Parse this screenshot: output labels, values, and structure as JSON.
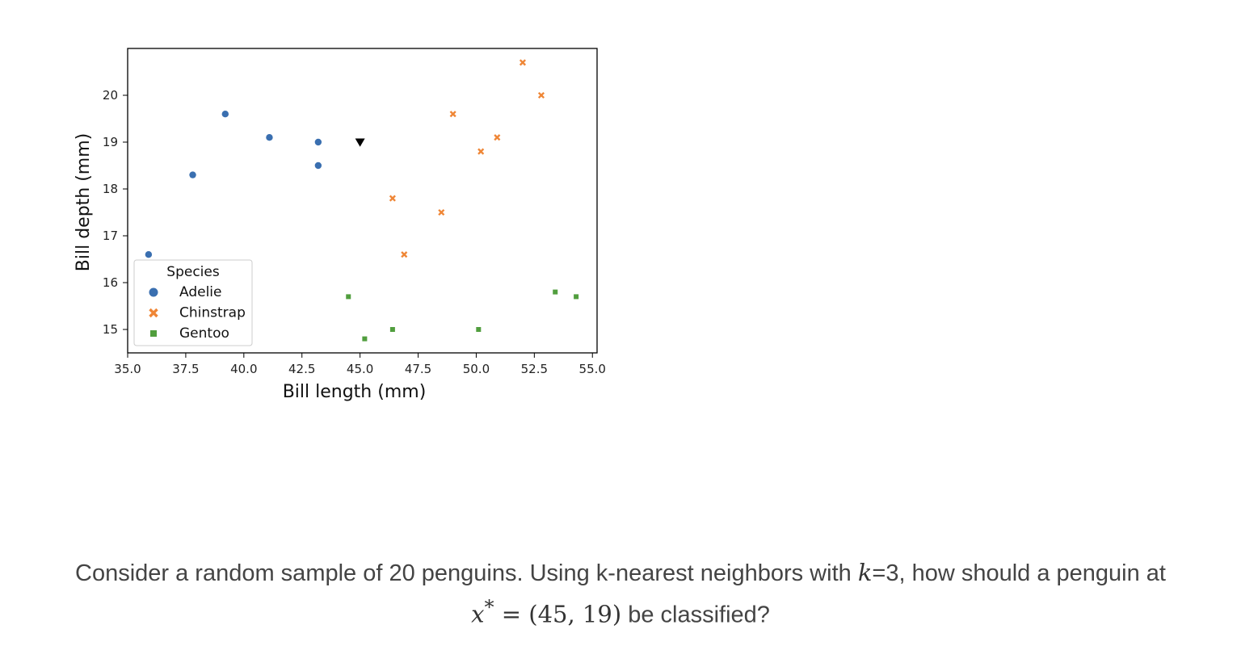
{
  "chart_data": {
    "type": "scatter",
    "xlabel": "Bill length (mm)",
    "ylabel": "Bill depth (mm)",
    "xlim": [
      35.0,
      55.2
    ],
    "ylim": [
      14.5,
      21.0
    ],
    "xticks": [
      "35.0",
      "37.5",
      "40.0",
      "42.5",
      "45.0",
      "47.5",
      "50.0",
      "52.5",
      "55.0"
    ],
    "yticks": [
      "15",
      "16",
      "17",
      "18",
      "19",
      "20"
    ],
    "grid": false,
    "legend": {
      "title": "Species",
      "position": "lower-left"
    },
    "series": [
      {
        "name": "Adelie",
        "marker": "circle",
        "color": "#3a6fb0",
        "x": [
          35.9,
          37.8,
          39.2,
          41.1,
          43.2,
          43.2
        ],
        "y": [
          16.6,
          18.3,
          19.6,
          19.1,
          19.0,
          18.5
        ]
      },
      {
        "name": "Chinstrap",
        "marker": "x",
        "color": "#ef8636",
        "x": [
          46.4,
          46.9,
          48.5,
          49.0,
          50.2,
          50.9,
          52.0,
          52.8
        ],
        "y": [
          17.8,
          16.6,
          17.5,
          19.6,
          18.8,
          19.1,
          20.7,
          20.0
        ]
      },
      {
        "name": "Gentoo",
        "marker": "square",
        "color": "#519e3e",
        "x": [
          44.5,
          45.2,
          46.4,
          50.1,
          53.4,
          54.3
        ],
        "y": [
          15.7,
          14.8,
          15.0,
          15.0,
          15.8,
          15.7
        ]
      }
    ],
    "query_point": {
      "x": 45,
      "y": 19,
      "marker": "triangle-down",
      "color": "#000000"
    }
  },
  "question": {
    "before_k": "Consider a random sample of 20 penguins. Using k-nearest neighbors with ",
    "k_symbol": "k",
    "after_k": "=3, how should a penguin at",
    "x_symbol": "x",
    "x_superscript": "*",
    "equals": " = ",
    "point": "(45, 19)",
    "tail": " be classified?"
  }
}
